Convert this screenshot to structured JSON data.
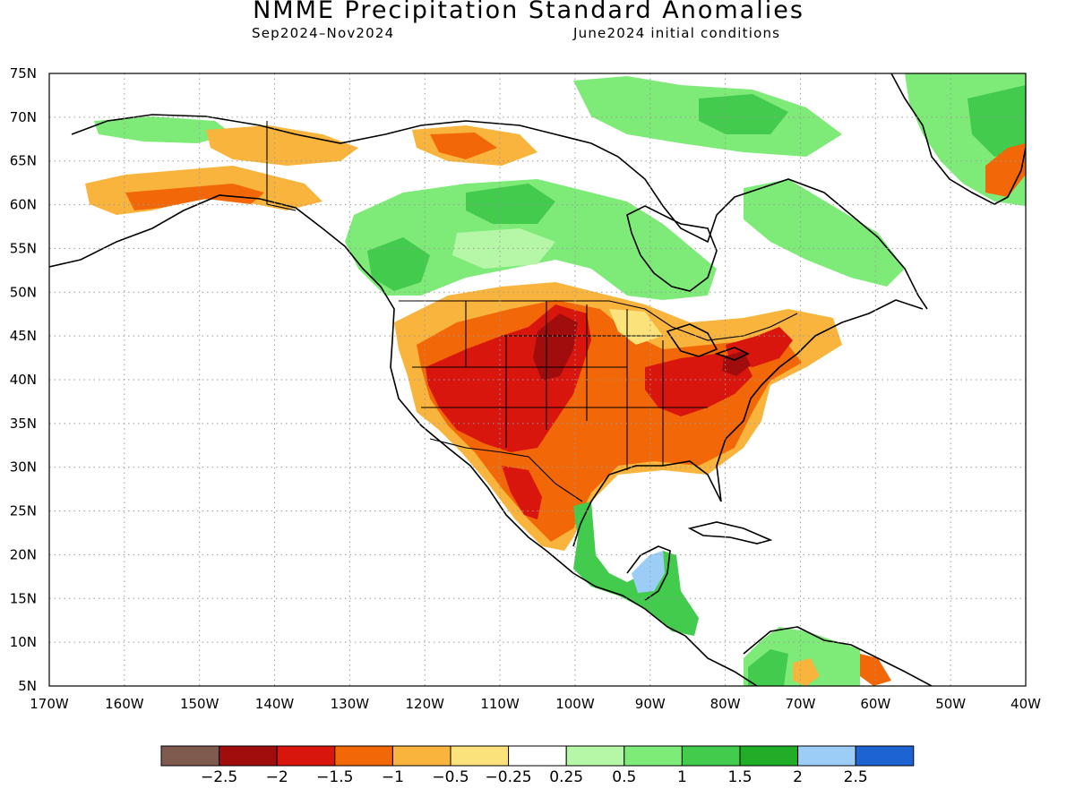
{
  "title": "NMME Precipitation Standard Anomalies",
  "subtitle_left": "Sep2024–Nov2024",
  "subtitle_right": "June2024 initial conditions",
  "axes": {
    "lat_labels": [
      "75N",
      "70N",
      "65N",
      "60N",
      "55N",
      "50N",
      "45N",
      "40N",
      "35N",
      "30N",
      "25N",
      "20N",
      "15N",
      "10N",
      "5N"
    ],
    "lon_labels": [
      "170W",
      "160W",
      "150W",
      "140W",
      "130W",
      "120W",
      "110W",
      "100W",
      "90W",
      "80W",
      "70W",
      "60W",
      "50W",
      "40W"
    ],
    "lat_range": [
      5,
      75
    ],
    "lon_range": [
      -170,
      -40
    ],
    "grid": "dotted"
  },
  "colorbar": {
    "colors": [
      "#7f5a4e",
      "#a10c0c",
      "#d8160e",
      "#f26707",
      "#f8b43c",
      "#fbe27a",
      "#ffffff",
      "#b5f7a6",
      "#7eeb78",
      "#43cb4e",
      "#22ad29",
      "#9ccdf7",
      "#1d64d2"
    ],
    "labels": [
      "−2.5",
      "−2",
      "−1.5",
      "−1",
      "−0.5",
      "−0.25",
      "0.25",
      "0.5",
      "1",
      "1.5",
      "2",
      "2.5"
    ]
  },
  "regions": [
    {
      "name": "west-central-us-drought",
      "category": "-1.5",
      "color": "#d8160e"
    },
    {
      "name": "ohio-valley-northeast-dry",
      "category": "-1.5",
      "color": "#d8160e"
    },
    {
      "name": "southeast-us-dry",
      "category": "-1",
      "color": "#f26707"
    },
    {
      "name": "canada-prairies-wet",
      "category": "1",
      "color": "#7eeb78"
    },
    {
      "name": "yucatan-wet",
      "category": "2",
      "color": "#9ccdf7"
    },
    {
      "name": "alaska-dry",
      "category": "-1",
      "color": "#f26707"
    },
    {
      "name": "greenland-wet",
      "category": "1.5",
      "color": "#43cb4e"
    }
  ]
}
